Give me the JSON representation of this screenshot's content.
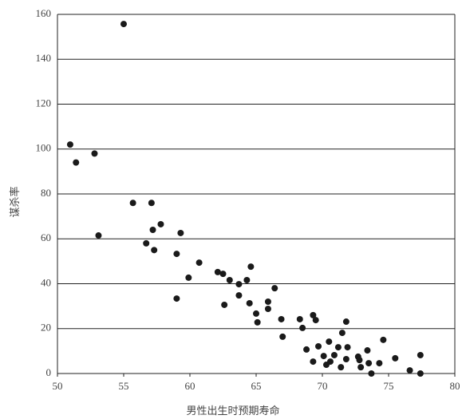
{
  "chart_data": {
    "type": "scatter",
    "x_label": "男性出生时预期寿命",
    "y_label": "谋杀率",
    "xlim": [
      50,
      80
    ],
    "xticks": [
      50,
      55,
      60,
      65,
      70,
      75,
      80
    ],
    "ylim": [
      0,
      160
    ],
    "yticks": [
      0,
      20,
      40,
      60,
      80,
      100,
      120,
      140,
      160
    ],
    "grid": true,
    "color": "#1a1a1a",
    "x": [
      50.96,
      51.4,
      52.8,
      53.1,
      55.0,
      55.7,
      57.1,
      57.2,
      57.8,
      56.7,
      57.3,
      59.0,
      59.3,
      60.7,
      59.9,
      59.0,
      62.1,
      62.5,
      63.0,
      63.7,
      64.3,
      64.6,
      62.6,
      63.7,
      64.5,
      65.0,
      65.1,
      65.9,
      65.9,
      66.4,
      66.9,
      67.0,
      68.3,
      68.5,
      69.3,
      69.5,
      68.8,
      69.3,
      69.7,
      70.1,
      70.3,
      70.5,
      70.6,
      70.9,
      71.2,
      71.5,
      71.8,
      71.4,
      71.8,
      71.9,
      72.7,
      72.9,
      72.8,
      73.4,
      73.5,
      73.7,
      74.3,
      74.6,
      75.5,
      76.6,
      77.4,
      77.4
    ],
    "values": [
      102,
      94,
      98,
      61.5,
      155.7,
      76,
      76,
      64,
      66.5,
      58,
      55,
      53.3,
      62.6,
      49.4,
      42.7,
      33.4,
      45.2,
      44.4,
      41.6,
      39.8,
      41.6,
      47.6,
      30.6,
      34.8,
      31.3,
      26.7,
      22.8,
      32,
      28.8,
      38,
      24.2,
      16.4,
      24.2,
      20.3,
      26,
      23.8,
      10.7,
      5.3,
      12.1,
      7.8,
      3.9,
      14.2,
      5.3,
      8.2,
      11.7,
      18.1,
      23.1,
      2.8,
      6.4,
      11.7,
      7.5,
      2.8,
      6,
      10.3,
      4.6,
      0,
      4.6,
      15,
      6.8,
      1.4,
      8.2,
      0
    ]
  }
}
